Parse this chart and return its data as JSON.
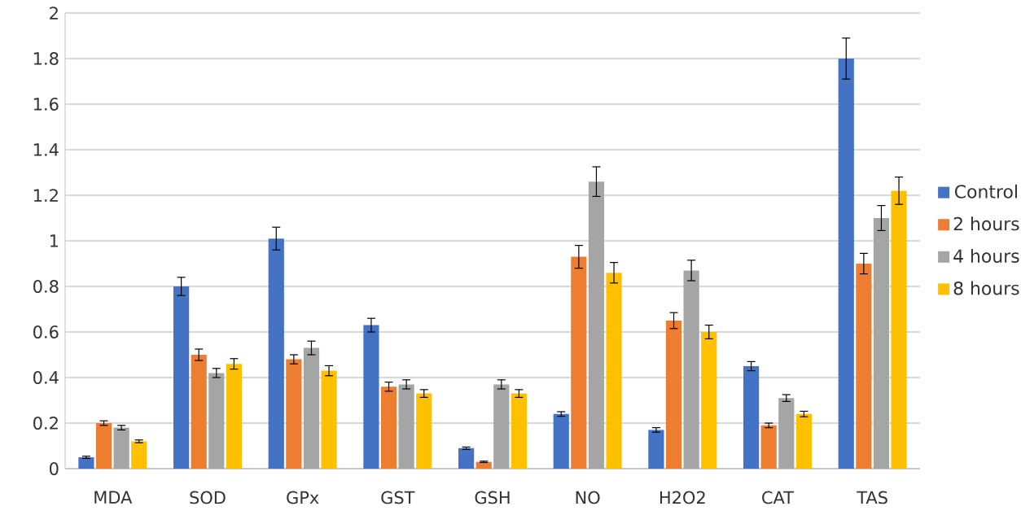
{
  "chart_data": {
    "type": "bar",
    "categories": [
      "MDA",
      "SOD",
      "GPx",
      "GST",
      "GSH",
      "NO",
      "H2O2",
      "CAT",
      "TAS"
    ],
    "series": [
      {
        "name": "Control",
        "color": "#4472c4",
        "values": [
          0.05,
          0.8,
          1.01,
          0.63,
          0.09,
          0.24,
          0.17,
          0.45,
          1.8
        ],
        "errors": [
          0.005,
          0.04,
          0.05,
          0.03,
          0.005,
          0.01,
          0.01,
          0.02,
          0.09
        ]
      },
      {
        "name": "2 hours",
        "color": "#ed7d31",
        "values": [
          0.2,
          0.5,
          0.48,
          0.36,
          0.03,
          0.93,
          0.65,
          0.19,
          0.9
        ],
        "errors": [
          0.01,
          0.025,
          0.02,
          0.02,
          0.003,
          0.05,
          0.035,
          0.01,
          0.045
        ]
      },
      {
        "name": "4 hours",
        "color": "#a5a5a5",
        "values": [
          0.18,
          0.42,
          0.53,
          0.37,
          0.37,
          1.26,
          0.87,
          0.31,
          1.1
        ],
        "errors": [
          0.01,
          0.02,
          0.03,
          0.02,
          0.02,
          0.065,
          0.045,
          0.015,
          0.055
        ]
      },
      {
        "name": "8 hours",
        "color": "#ffc000",
        "values": [
          0.12,
          0.46,
          0.43,
          0.33,
          0.33,
          0.86,
          0.6,
          0.24,
          1.22
        ],
        "errors": [
          0.006,
          0.023,
          0.022,
          0.017,
          0.017,
          0.045,
          0.03,
          0.012,
          0.06
        ]
      }
    ],
    "ylim": [
      0,
      2
    ],
    "yticks": [
      0,
      0.2,
      0.4,
      0.6,
      0.8,
      1,
      1.2,
      1.4,
      1.6,
      1.8,
      2
    ],
    "grid": "y",
    "legend": "right"
  }
}
